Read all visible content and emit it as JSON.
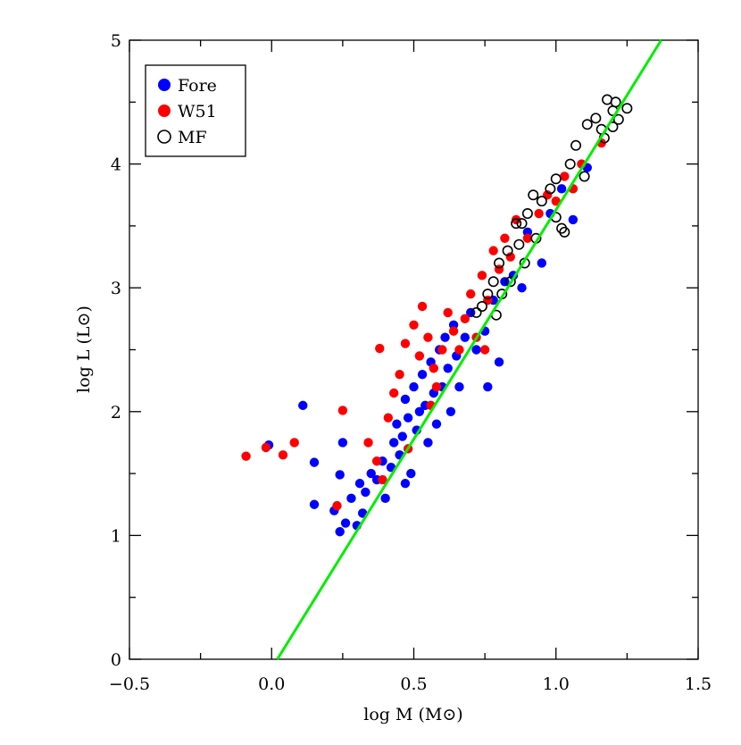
{
  "chart_data": {
    "type": "scatter",
    "x_label": "log M (M⊙)",
    "y_label": "log L (L⊙)",
    "xlim": [
      -0.5,
      1.5
    ],
    "ylim": [
      0,
      5
    ],
    "xticks": [
      {
        "value": -0.5,
        "label": "−0.5"
      },
      {
        "value": 0,
        "label": "0.0"
      },
      0.5,
      {
        "value": 1,
        "label": "1.0"
      },
      1.5
    ],
    "yticks": [
      0,
      1,
      2,
      3,
      4,
      5
    ],
    "xminorticks": [
      -0.25,
      0.25,
      0.75,
      1.25
    ],
    "yminorticks": [
      0.5,
      1.5,
      2.5,
      3.5,
      4.5
    ],
    "legend_corner": "upper left",
    "series": [
      {
        "name": "Fore",
        "color": "#0000ff",
        "filled": true,
        "x": [
          0.11,
          0.15,
          0.15,
          -0.01,
          0.24,
          0.22,
          0.24,
          0.26,
          0.28,
          0.3,
          0.31,
          0.33,
          0.35,
          0.37,
          0.39,
          0.4,
          0.42,
          0.43,
          0.44,
          0.45,
          0.46,
          0.47,
          0.48,
          0.49,
          0.5,
          0.51,
          0.52,
          0.53,
          0.54,
          0.55,
          0.56,
          0.57,
          0.58,
          0.59,
          0.6,
          0.61,
          0.62,
          0.63,
          0.64,
          0.65,
          0.66,
          0.68,
          0.7,
          0.72,
          0.75,
          0.76,
          0.78,
          0.8,
          0.82,
          0.85,
          0.88,
          0.9,
          0.95,
          0.98,
          1.02,
          1.06,
          1.11,
          0.25,
          0.32,
          0.47
        ],
        "y": [
          2.05,
          1.59,
          1.25,
          1.73,
          1.49,
          1.2,
          1.03,
          1.1,
          1.3,
          1.08,
          1.42,
          1.35,
          1.5,
          1.45,
          1.6,
          1.3,
          1.55,
          1.75,
          1.9,
          1.65,
          1.8,
          2.1,
          1.95,
          1.5,
          2.2,
          1.85,
          2.0,
          2.3,
          2.05,
          1.75,
          2.4,
          2.15,
          1.9,
          2.5,
          2.2,
          2.6,
          2.35,
          2.0,
          2.7,
          2.45,
          2.2,
          2.6,
          2.8,
          2.5,
          2.65,
          2.2,
          2.9,
          2.4,
          3.05,
          3.1,
          3.0,
          3.45,
          3.2,
          3.6,
          3.8,
          3.55,
          3.97,
          1.75,
          1.18,
          1.42
        ]
      },
      {
        "name": "W51",
        "color": "#ff0000",
        "filled": true,
        "x": [
          -0.09,
          -0.02,
          0.04,
          0.08,
          0.23,
          0.25,
          0.34,
          0.38,
          0.39,
          0.41,
          0.43,
          0.45,
          0.47,
          0.5,
          0.52,
          0.53,
          0.55,
          0.57,
          0.58,
          0.6,
          0.62,
          0.64,
          0.66,
          0.68,
          0.7,
          0.72,
          0.74,
          0.76,
          0.78,
          0.8,
          0.82,
          0.84,
          0.86,
          0.9,
          0.94,
          0.97,
          1.0,
          1.03,
          1.06,
          1.09,
          1.16,
          0.75,
          0.37,
          0.48,
          0.56
        ],
        "y": [
          1.64,
          1.71,
          1.65,
          1.75,
          1.24,
          2.01,
          1.75,
          2.51,
          1.45,
          1.95,
          2.15,
          2.3,
          2.55,
          2.7,
          2.45,
          2.85,
          2.6,
          2.35,
          2.2,
          2.5,
          2.8,
          2.65,
          2.5,
          2.75,
          2.95,
          2.6,
          3.1,
          2.9,
          3.3,
          3.15,
          3.4,
          3.25,
          3.55,
          3.4,
          3.6,
          3.75,
          3.7,
          3.9,
          3.8,
          4.0,
          4.17,
          2.5,
          1.6,
          1.7,
          2.05
        ]
      },
      {
        "name": "MF",
        "color": "#000000",
        "filled": false,
        "x": [
          0.72,
          0.74,
          0.76,
          0.78,
          0.8,
          0.81,
          0.83,
          0.84,
          0.86,
          0.87,
          0.88,
          0.89,
          0.9,
          0.92,
          0.93,
          0.95,
          0.98,
          1.0,
          1.0,
          1.02,
          1.03,
          1.05,
          1.07,
          1.1,
          1.11,
          1.14,
          1.16,
          1.17,
          1.18,
          1.2,
          1.2,
          1.22,
          1.25,
          1.21,
          0.79
        ],
        "y": [
          2.8,
          2.85,
          2.95,
          3.05,
          3.2,
          2.95,
          3.3,
          3.05,
          3.52,
          3.35,
          3.52,
          3.2,
          3.6,
          3.75,
          3.4,
          3.7,
          3.8,
          3.88,
          3.57,
          3.48,
          3.45,
          4.0,
          4.15,
          3.9,
          4.32,
          4.37,
          4.28,
          4.21,
          4.52,
          4.43,
          4.3,
          4.36,
          4.45,
          4.5,
          2.78
        ]
      }
    ],
    "lines": [
      {
        "color": "#00ee00",
        "x": [
          0.02,
          1.37
        ],
        "y": [
          0,
          5
        ]
      }
    ]
  }
}
